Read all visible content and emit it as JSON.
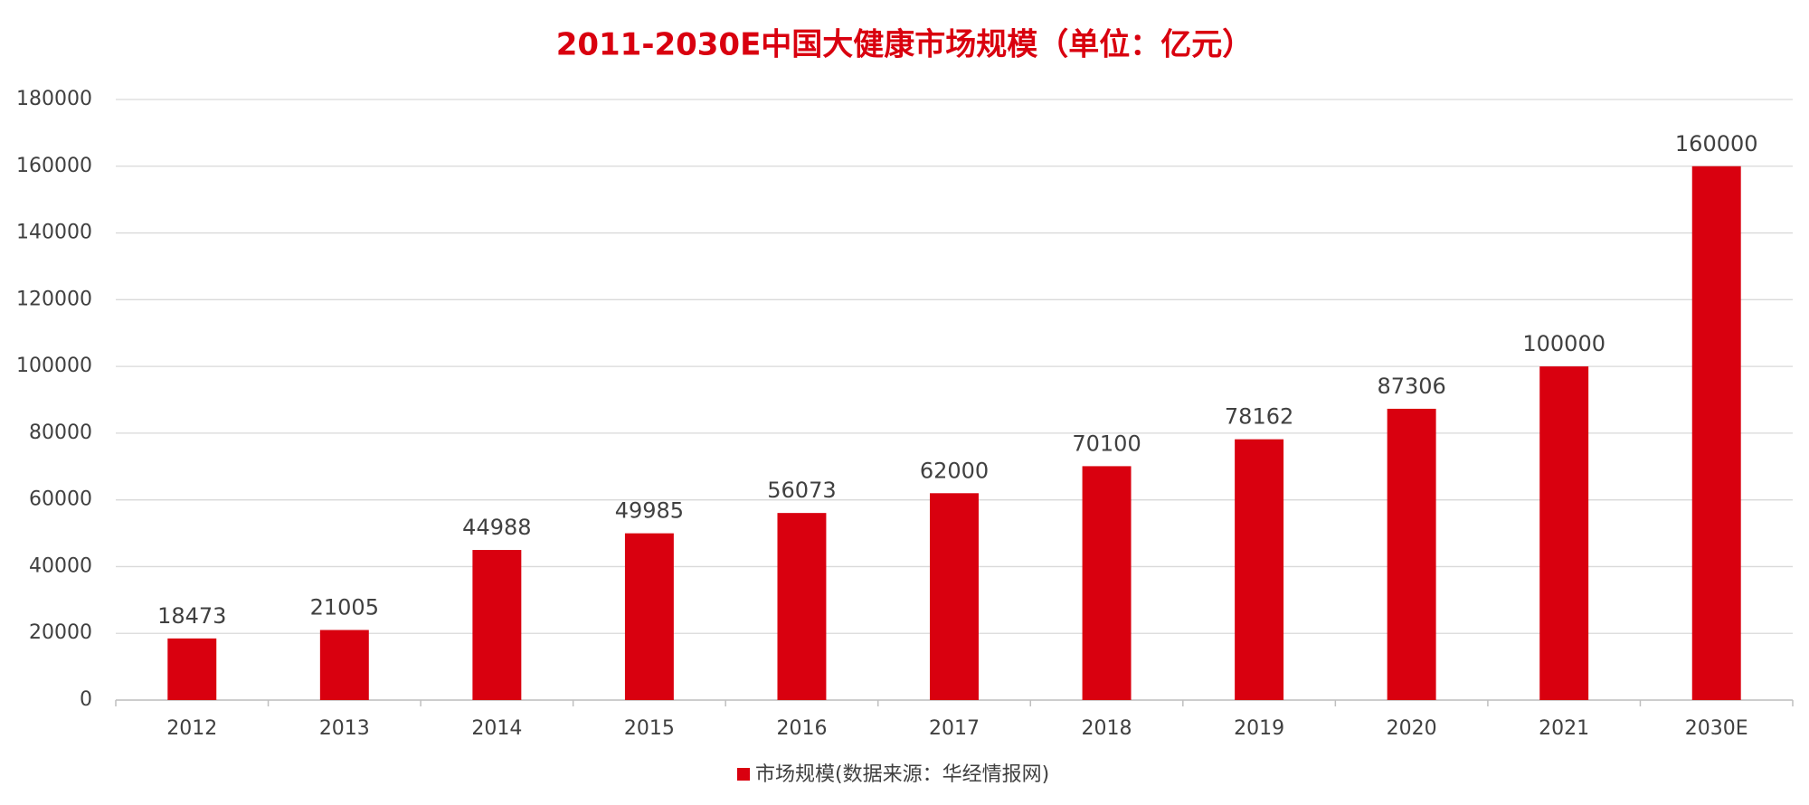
{
  "chart_data": {
    "type": "bar",
    "title": "2011-2030E中国大健康市场规模（单位：亿元）",
    "categories": [
      "2012",
      "2013",
      "2014",
      "2015",
      "2016",
      "2017",
      "2018",
      "2019",
      "2020",
      "2021",
      "2030E"
    ],
    "series": [
      {
        "name": "市场规模(数据来源：华经情报网)",
        "color": "#d9000f",
        "values": [
          18473,
          21005,
          44988,
          49985,
          56073,
          62000,
          70100,
          78162,
          87306,
          100000,
          160000
        ]
      }
    ],
    "ylim": [
      0,
      180000
    ],
    "yticks": [
      0,
      20000,
      40000,
      60000,
      80000,
      100000,
      120000,
      140000,
      160000,
      180000
    ],
    "grid": true,
    "legend": "bottom"
  }
}
